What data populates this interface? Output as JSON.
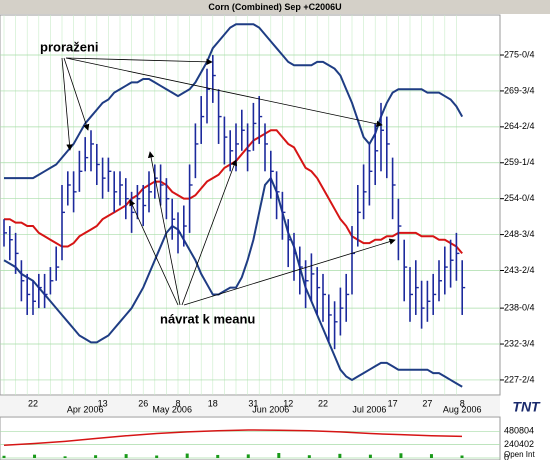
{
  "title": "Corn (Combined) Sep +C2006U",
  "annotations": [
    "proraženi",
    "návrat k meanu"
  ],
  "logo": "TNT",
  "chart_data": [
    {
      "type": "hlc",
      "categories": [
        null,
        null,
        null,
        null,
        null,
        "22",
        null,
        null,
        null,
        null,
        null,
        null,
        null,
        null,
        null,
        null,
        null,
        "13",
        null,
        null,
        null,
        null,
        null,
        null,
        "26",
        null,
        null,
        null,
        null,
        null,
        "8",
        null,
        null,
        null,
        null,
        null,
        "18",
        null,
        null,
        null,
        null,
        null,
        null,
        "31",
        null,
        null,
        null,
        null,
        null,
        "12",
        null,
        null,
        null,
        null,
        null,
        "22",
        null,
        null,
        null,
        null,
        null,
        null,
        null,
        null,
        null,
        null,
        null,
        "17",
        null,
        null,
        null,
        null,
        null,
        "27",
        null,
        null,
        null,
        null,
        null,
        "8"
      ],
      "month_categories": [
        null,
        null,
        null,
        null,
        null,
        null,
        null,
        null,
        null,
        null,
        null,
        null,
        null,
        null,
        "Apr 2006",
        null,
        null,
        null,
        null,
        null,
        null,
        null,
        null,
        null,
        null,
        null,
        null,
        null,
        null,
        "May 2006",
        null,
        null,
        null,
        null,
        null,
        null,
        null,
        null,
        null,
        null,
        null,
        null,
        null,
        null,
        null,
        null,
        "Jun 2006",
        null,
        null,
        null,
        null,
        null,
        null,
        null,
        null,
        null,
        null,
        null,
        null,
        null,
        null,
        null,
        null,
        "Jul 2006",
        null,
        null,
        null,
        null,
        null,
        null,
        null,
        null,
        null,
        null,
        null,
        null,
        null,
        null,
        null,
        "Aug 2006"
      ],
      "high": [
        251,
        250,
        249,
        245,
        243,
        242,
        243,
        243,
        244,
        247,
        256,
        258,
        258,
        261,
        263,
        264,
        262,
        260,
        260,
        258,
        258,
        257,
        255,
        256,
        256,
        258,
        259,
        259,
        257,
        254,
        252,
        253,
        259,
        265,
        269,
        273,
        275,
        270,
        266,
        264,
        265,
        267,
        265,
        268,
        269,
        265,
        261,
        258,
        255,
        251,
        249,
        247,
        245,
        246,
        244,
        243,
        240,
        239,
        241,
        243,
        250,
        256,
        259,
        262,
        265,
        268,
        266,
        260,
        254,
        248,
        244,
        245,
        242,
        242,
        243,
        245,
        247,
        248,
        249,
        245
      ],
      "low": [
        247,
        245,
        243,
        239,
        237,
        237,
        238,
        238,
        240,
        242,
        245,
        253,
        252,
        255,
        258,
        258,
        256,
        254,
        255,
        252,
        253,
        251,
        249,
        251,
        250,
        252,
        254,
        253,
        251,
        248,
        246,
        247,
        249,
        257,
        262,
        265,
        268,
        262,
        259,
        258,
        258,
        261,
        258,
        261,
        262,
        258,
        254,
        251,
        248,
        244,
        242,
        240,
        238,
        239,
        237,
        236,
        233,
        232,
        234,
        236,
        240,
        247,
        251,
        253,
        256,
        258,
        257,
        251,
        245,
        239,
        236,
        237,
        235,
        236,
        237,
        239,
        240,
        241,
        242,
        237
      ],
      "close": [
        249,
        248,
        246,
        242,
        240,
        239,
        241,
        240,
        242,
        244,
        252,
        256,
        255,
        258,
        260,
        262,
        259,
        257,
        258,
        255,
        256,
        254,
        252,
        254,
        253,
        255,
        257,
        256,
        254,
        251,
        249,
        250,
        256,
        262,
        266,
        270,
        272,
        266,
        263,
        261,
        262,
        264,
        261,
        265,
        266,
        262,
        258,
        255,
        252,
        248,
        246,
        244,
        242,
        243,
        241,
        240,
        237,
        236,
        238,
        240,
        246,
        252,
        255,
        258,
        261,
        264,
        262,
        256,
        250,
        244,
        240,
        241,
        238,
        239,
        240,
        242,
        244,
        245,
        246,
        241
      ],
      "bar_color": "#1c2a9c",
      "upper_band": {
        "color": "#1f3d84",
        "values": [
          257,
          257,
          257,
          257,
          257,
          257,
          257.5,
          258,
          258.5,
          259,
          260,
          261,
          262,
          263.5,
          265,
          266,
          267,
          268,
          268.5,
          269.5,
          270,
          270.5,
          271,
          271,
          271.5,
          271.5,
          271,
          270.5,
          270,
          269.5,
          269,
          269.5,
          270,
          271,
          272.5,
          274,
          276,
          277,
          278,
          279,
          279.5,
          279.5,
          279.5,
          279.5,
          279,
          278,
          277,
          276,
          275,
          274,
          273.5,
          273.5,
          273.5,
          273.5,
          274,
          274,
          273.5,
          273,
          272,
          270,
          268,
          265.5,
          263,
          262,
          263.5,
          266,
          268,
          269.5,
          270,
          270,
          270,
          270,
          270,
          269.5,
          269.5,
          269.5,
          269,
          268.5,
          267.5,
          266
        ]
      },
      "middle_band": {
        "color": "#d61515",
        "values": [
          251,
          251,
          250.5,
          250.5,
          250,
          250,
          249,
          248.5,
          248,
          247.5,
          247,
          247,
          247.5,
          248.5,
          249,
          249.5,
          250,
          251,
          251.5,
          252,
          252.5,
          253,
          254,
          254.5,
          255.5,
          256,
          256.5,
          256.5,
          256,
          255,
          254.5,
          254,
          254,
          254.5,
          255.5,
          256.5,
          257,
          257.5,
          258.5,
          259,
          259.5,
          260.5,
          261.5,
          262.5,
          263,
          263.5,
          264,
          264,
          263,
          262,
          261.5,
          260,
          258.5,
          258,
          257,
          255.5,
          254,
          252.5,
          251,
          250,
          248.5,
          248,
          247.5,
          247.5,
          248,
          248,
          248.5,
          248.5,
          249,
          249,
          249,
          249,
          248.5,
          248.5,
          248.5,
          248,
          248,
          247.5,
          247,
          246
        ]
      },
      "lower_band": {
        "color": "#1f3d84",
        "values": [
          245,
          244.5,
          244,
          243,
          242.5,
          242,
          241,
          240,
          239,
          238,
          237,
          236,
          235,
          234,
          233.5,
          233,
          233,
          233.5,
          234,
          235,
          236,
          237,
          238,
          239.5,
          241,
          243,
          245,
          247,
          249,
          250,
          249.5,
          248,
          246.5,
          245,
          243,
          241.5,
          240,
          240,
          240.5,
          241,
          241,
          242.5,
          245,
          248,
          252,
          256,
          257,
          255,
          252,
          249,
          247,
          244,
          241,
          239,
          237,
          235,
          233,
          231,
          229,
          228,
          227.5,
          228,
          228.5,
          229,
          229.5,
          230,
          230,
          229.5,
          229,
          229,
          229,
          229,
          229,
          229,
          228.5,
          228.5,
          228,
          227.5,
          227,
          226.5
        ]
      },
      "ylim": [
        225.3,
        280.85
      ],
      "yticks": [
        {
          "value": 275,
          "label": "275-0/4"
        },
        {
          "value": 269.75,
          "label": "269-3/4"
        },
        {
          "value": 264.5,
          "label": "264-2/4"
        },
        {
          "value": 259.25,
          "label": "259-1/4"
        },
        {
          "value": 254,
          "label": "254-0/4"
        },
        {
          "value": 248.75,
          "label": "248-3/4"
        },
        {
          "value": 243.5,
          "label": "243-2/4"
        },
        {
          "value": 238,
          "label": "238-0/4"
        },
        {
          "value": 232.75,
          "label": "232-3/4"
        },
        {
          "value": 227.5,
          "label": "227-2/4"
        }
      ],
      "grid": true
    },
    {
      "type": "volume",
      "label": "Open Int",
      "open_interest": {
        "color": "#d61515",
        "values": [
          230000,
          260000,
          300000,
          350000,
          400000,
          440000,
          470000,
          490000,
          505000,
          500000,
          490000,
          470000,
          440000,
          420000,
          400000,
          390000
        ]
      },
      "volume": {
        "color": "#1a9a1a",
        "values": [
          40000,
          60000,
          30000,
          50000,
          70000,
          45000,
          80000,
          55000,
          65000,
          90000,
          50000,
          75000,
          60000,
          85000,
          70000,
          45000
        ]
      },
      "ylim": [
        0,
        720000
      ],
      "yticks": [
        0,
        240402,
        480804
      ]
    }
  ]
}
